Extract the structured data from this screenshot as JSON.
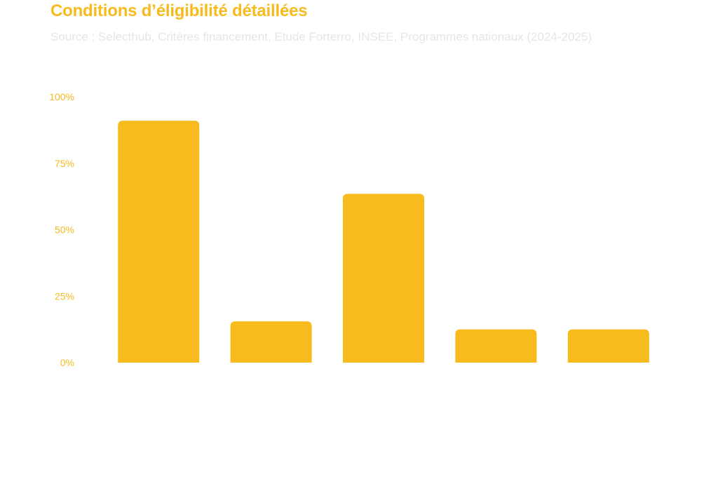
{
  "header": {
    "title": "Conditions d’éligibilité détaillées",
    "subtitle": "Source : Selecthub, Critères financement, Etude Forterro, INSEE, Programmes nationaux (2024-2025)"
  },
  "colors": {
    "bar": "#F7BB1E",
    "axis_text": "#F7BB1E",
    "subtitle": "#e6e6e6"
  },
  "chart_data": {
    "type": "bar",
    "title": "Conditions d’éligibilité détaillées",
    "subtitle": "Source : Selecthub, Critères financement, Etude Forterro, INSEE, Programmes nationaux (2024-2025)",
    "categories": [
      "",
      "",
      "",
      "",
      ""
    ],
    "values": [
      91,
      15.5,
      63.5,
      12.5,
      12.5
    ],
    "ylim": [
      0,
      100
    ],
    "yticks": [
      "0%",
      "25%",
      "50%",
      "75%",
      "100%"
    ],
    "ytick_values": [
      0,
      25,
      50,
      75,
      100
    ],
    "grid": false,
    "legend": "none"
  }
}
